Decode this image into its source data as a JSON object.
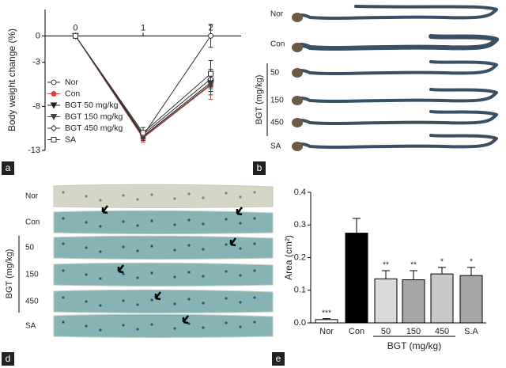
{
  "chart_data": [
    {
      "type": "line",
      "y_label": "Body weight change (%)",
      "x": [
        0,
        1,
        2
      ],
      "xlim": [
        -0.45,
        2.45
      ],
      "xticks": [
        0,
        1,
        2
      ],
      "ylim": [
        -13,
        3
      ],
      "yticks": [
        0,
        -3,
        -8,
        -13
      ],
      "legend": "lower-left",
      "series": [
        {
          "name": "Nor",
          "color": "#333333",
          "marker": "circle-open",
          "values": [
            0,
            -11.3,
            0
          ],
          "errors": [
            0,
            0.4,
            1.3
          ]
        },
        {
          "name": "Con",
          "color": "#e0403a",
          "marker": "circle",
          "values": [
            0,
            -11.6,
            -5.6
          ],
          "errors": [
            0,
            0.5,
            1.6
          ]
        },
        {
          "name": "BGT 50 mg/kg",
          "color": "#222222",
          "marker": "triangle-down",
          "values": [
            0,
            -11.4,
            -5.3
          ],
          "errors": [
            0,
            0.5,
            1.0
          ]
        },
        {
          "name": "BGT 150 mg/kg",
          "color": "#444444",
          "marker": "triangle-down",
          "values": [
            0,
            -11.5,
            -5.5
          ],
          "errors": [
            0,
            0.4,
            1.2
          ]
        },
        {
          "name": "BGT 450 mg/kg",
          "color": "#333333",
          "marker": "diamond-open",
          "values": [
            0,
            -11.2,
            -4.9
          ],
          "errors": [
            0,
            0.4,
            1.1
          ]
        },
        {
          "name": "SA",
          "color": "#333333",
          "marker": "square-open",
          "values": [
            0,
            -11.0,
            -4.3
          ],
          "errors": [
            0,
            0.6,
            1.5
          ]
        }
      ]
    },
    {
      "type": "bar",
      "y_label": "Area (cm²)",
      "group_label": "BGT (mg/kg)",
      "categories": [
        "Nor",
        "Con",
        "50",
        "150",
        "450",
        "S.A"
      ],
      "values": [
        0.01,
        0.275,
        0.135,
        0.132,
        0.15,
        0.145
      ],
      "errors": [
        0.003,
        0.045,
        0.025,
        0.028,
        0.02,
        0.025
      ],
      "annotations": [
        "***",
        null,
        "**",
        "**",
        "*",
        "*"
      ],
      "colors": [
        "#ffffff",
        "#000000",
        "#d9d9d9",
        "#a6a6a6",
        "#c8c8c8",
        "#a6a6a6"
      ],
      "ylim": [
        0,
        0.4
      ],
      "yticks": [
        {
          "value": 0,
          "label": "0.0"
        },
        0.1,
        0.2,
        0.3,
        0.4
      ]
    }
  ],
  "photo_b": {
    "labels": [
      "Nor",
      "Con",
      "50",
      "150",
      "450",
      "SA"
    ],
    "group_label": "BGT (mg/kg)"
  },
  "photo_d": {
    "labels": [
      "Nor",
      "Con",
      "50",
      "150",
      "450",
      "SA"
    ],
    "group_label": "BGT (mg/kg)"
  },
  "panel_letters": [
    "a",
    "b",
    "d",
    "e"
  ]
}
